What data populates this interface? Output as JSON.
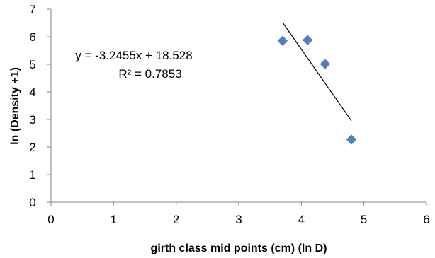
{
  "chart_data": {
    "type": "scatter",
    "xlabel": "girth class mid points  (cm) (ln D)",
    "ylabel": "ln (Density +1)",
    "xlim": [
      0,
      6
    ],
    "ylim": [
      0,
      7
    ],
    "xticks": [
      0,
      1,
      2,
      3,
      4,
      5,
      6
    ],
    "yticks": [
      0,
      1,
      2,
      3,
      4,
      5,
      6,
      7
    ],
    "grid": false,
    "legend": "none",
    "series": [
      {
        "marker": "diamond",
        "color": "#4f81bd",
        "points": [
          {
            "x": 3.7,
            "y": 5.85
          },
          {
            "x": 4.1,
            "y": 5.88
          },
          {
            "x": 4.38,
            "y": 5.01
          },
          {
            "x": 4.8,
            "y": 2.27
          }
        ]
      }
    ],
    "trendline": {
      "type": "linear",
      "slope": -3.2455,
      "intercept": 18.528,
      "x_range": [
        3.7,
        4.8
      ],
      "color": "#000000"
    },
    "annotations": {
      "equation": "y = -3.2455x + 18.528",
      "r_squared": "R² = 0.7853"
    }
  }
}
